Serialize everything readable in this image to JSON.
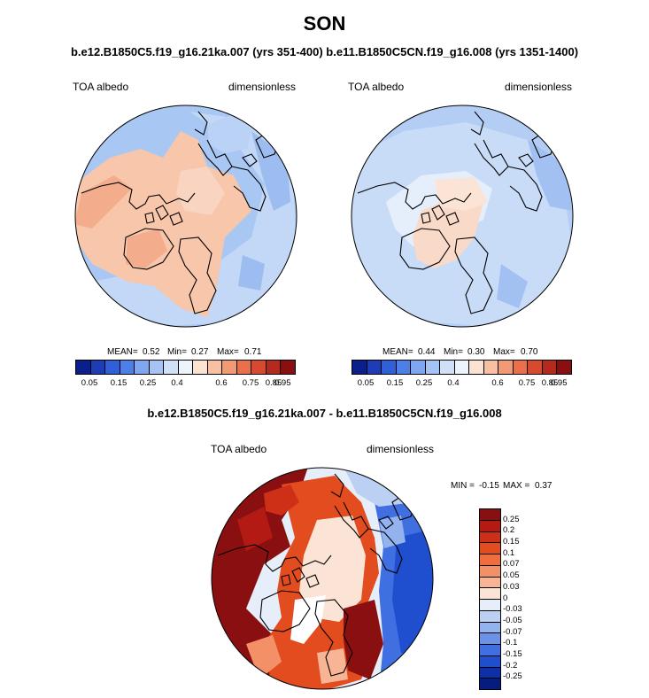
{
  "title": "SON",
  "subtitle": "b.e12.B1850C5.f19_g16.21ka.007 (yrs 351-400) b.e11.B1850C5CN.f19_g16.008 (yrs 1351-1400)",
  "diff_title": "b.e12.B1850C5.f19_g16.21ka.007 - b.e11.B1850C5CN.f19_g16.008",
  "chart_data": [
    {
      "type": "heatmap",
      "projection": "north polar stereographic",
      "variable": "TOA albedo",
      "units": "dimensionless",
      "case": "b.e12.B1850C5.f19_g16.21ka.007 (yrs 351-400)",
      "stats": {
        "mean_label": "MEAN=",
        "mean": "0.52",
        "min_label": "Min=",
        "min": "0.27",
        "max_label": "Max=",
        "max": "0.71"
      },
      "levels": [
        "0.05",
        "0.15",
        "0.25",
        "0.4",
        "0.6",
        "0.75",
        "0.85",
        "0.95"
      ]
    },
    {
      "type": "heatmap",
      "projection": "north polar stereographic",
      "variable": "TOA albedo",
      "units": "dimensionless",
      "case": "b.e11.B1850C5CN.f19_g16.008 (yrs 1351-1400)",
      "stats": {
        "mean_label": "MEAN=",
        "mean": "0.44",
        "min_label": "Min=",
        "min": "0.30",
        "max_label": "Max=",
        "max": "0.70"
      },
      "levels": [
        "0.05",
        "0.15",
        "0.25",
        "0.4",
        "0.6",
        "0.75",
        "0.85",
        "0.95"
      ]
    },
    {
      "type": "heatmap",
      "projection": "north polar stereographic",
      "variable": "TOA albedo",
      "units": "dimensionless",
      "case": "difference",
      "stats": {
        "min_label": "MIN =",
        "min": "-0.15",
        "max_label": "MAX =",
        "max": "0.37"
      },
      "levels": [
        "0.25",
        "0.2",
        "0.15",
        "0.1",
        "0.07",
        "0.05",
        "0.03",
        "0",
        "-0.03",
        "-0.05",
        "-0.07",
        "-0.1",
        "-0.15",
        "-0.2",
        "-0.25"
      ]
    }
  ],
  "colors": {
    "abs_scale": [
      "#0a1f8c",
      "#1d3cb5",
      "#2f5fd9",
      "#4d7fe8",
      "#7fa6ef",
      "#a6c4f3",
      "#cfe0f8",
      "#eef4fc",
      "#fbe2d3",
      "#f7c0a3",
      "#f29a74",
      "#ea6f4a",
      "#d84a30",
      "#b52a1f",
      "#8a0f10"
    ],
    "diff_scale": [
      "#8a0f10",
      "#b31a14",
      "#cd3016",
      "#e24c1f",
      "#ee6e3d",
      "#f39068",
      "#f8b596",
      "#fbe3d6",
      "#e6eefa",
      "#bcd0f3",
      "#93b2ee",
      "#6a93e8",
      "#3f6fe0",
      "#1f4ecf",
      "#0d2fa8",
      "#061d80"
    ]
  }
}
